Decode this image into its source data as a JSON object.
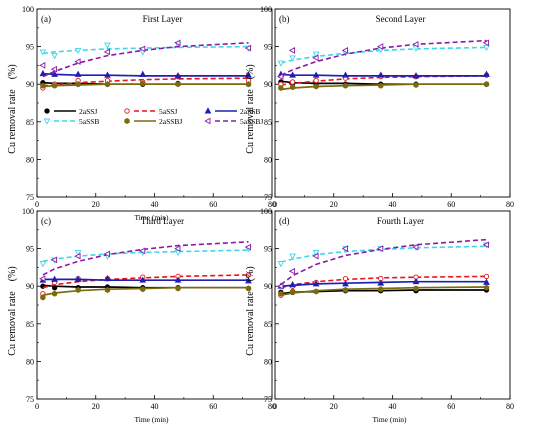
{
  "legend": [
    {
      "name": "2aSSJ",
      "color": "#000000",
      "dash": "solid",
      "marker": "filled-circle"
    },
    {
      "name": "5aSSJ",
      "color": "#e8141b",
      "dash": "dashed",
      "marker": "open-circle"
    },
    {
      "name": "2aSSB",
      "color": "#1f1fb4",
      "dash": "solid",
      "marker": "filled-triangle-up"
    },
    {
      "name": "5aSSB",
      "color": "#3fd6ea",
      "dash": "dashed",
      "marker": "open-triangle-down"
    },
    {
      "name": "2aSSBJ",
      "color": "#7a6a10",
      "dash": "solid",
      "marker": "filled-hexagon"
    },
    {
      "name": "5aSSBJ",
      "color": "#8b1aa8",
      "dash": "dashed",
      "marker": "open-triangle-left"
    }
  ],
  "chart_data": [
    {
      "type": "line",
      "panel": "(a)",
      "title": "First Layer",
      "xlabel": "Time (min)",
      "ylabel": "Cu removal rate　(%)",
      "xlim": [
        0,
        80
      ],
      "ylim": [
        75,
        100
      ],
      "xticks": [
        0,
        20,
        40,
        60,
        80
      ],
      "yticks": [
        75,
        80,
        85,
        90,
        95,
        100
      ],
      "x": [
        2,
        6,
        14,
        24,
        36,
        48,
        72
      ],
      "series": [
        {
          "name": "2aSSJ",
          "points": [
            90.2,
            90.0,
            90.0,
            90.0,
            90.0,
            90.1,
            90.0
          ],
          "fit": [
            90.2,
            90.1,
            90.1,
            90.0,
            90.0,
            90.0,
            90.0
          ]
        },
        {
          "name": "5aSSJ",
          "points": [
            89.5,
            90.0,
            90.5,
            90.5,
            90.3,
            91.0,
            90.5
          ],
          "fit": [
            89.8,
            89.9,
            90.2,
            90.4,
            90.6,
            90.7,
            90.8
          ]
        },
        {
          "name": "2aSSB",
          "points": [
            91.4,
            91.3,
            91.3,
            91.2,
            91.3,
            91.1,
            91.2
          ],
          "fit": [
            91.4,
            91.3,
            91.2,
            91.2,
            91.1,
            91.1,
            91.1
          ]
        },
        {
          "name": "5aSSB",
          "points": [
            94.3,
            93.8,
            94.5,
            95.2,
            94.3,
            95.3,
            94.8
          ],
          "fit": [
            94.1,
            94.3,
            94.5,
            94.7,
            94.8,
            94.9,
            95.0
          ]
        },
        {
          "name": "2aSSBJ",
          "points": [
            89.8,
            89.8,
            90.0,
            90.0,
            90.1,
            90.0,
            90.0
          ],
          "fit": [
            89.7,
            89.8,
            89.9,
            90.0,
            90.0,
            90.0,
            90.0
          ]
        },
        {
          "name": "5aSSBJ",
          "points": [
            92.5,
            92.0,
            93.0,
            94.3,
            94.7,
            95.5,
            94.8
          ],
          "fit": [
            91.0,
            91.7,
            92.8,
            93.8,
            94.5,
            95.0,
            95.5
          ]
        }
      ]
    },
    {
      "type": "line",
      "panel": "(b)",
      "title": "Second Layer",
      "xlabel": "",
      "ylabel": "Cu removal rate　(%)",
      "xlim": [
        0,
        80
      ],
      "ylim": [
        75,
        100
      ],
      "xticks": [
        0,
        20,
        40,
        60,
        80
      ],
      "yticks": [
        75,
        80,
        85,
        90,
        95,
        100
      ],
      "x": [
        2,
        6,
        14,
        24,
        36,
        48,
        72
      ],
      "series": [
        {
          "name": "2aSSJ",
          "points": [
            90.3,
            90.1,
            90.0,
            90.0,
            90.0,
            90.0,
            90.0
          ],
          "fit": [
            90.4,
            90.2,
            90.1,
            90.1,
            90.0,
            90.0,
            90.0
          ]
        },
        {
          "name": "5aSSJ",
          "points": [
            90.0,
            90.3,
            90.5,
            90.8,
            91.0,
            91.0,
            91.2
          ],
          "fit": [
            89.9,
            90.1,
            90.4,
            90.7,
            90.9,
            91.0,
            91.1
          ]
        },
        {
          "name": "2aSSB",
          "points": [
            91.3,
            91.2,
            91.2,
            91.2,
            91.2,
            91.1,
            91.3
          ],
          "fit": [
            91.3,
            91.2,
            91.2,
            91.1,
            91.1,
            91.1,
            91.1
          ]
        },
        {
          "name": "5aSSB",
          "points": [
            92.8,
            93.5,
            94.0,
            94.2,
            94.6,
            94.8,
            94.9
          ],
          "fit": [
            92.8,
            93.2,
            93.7,
            94.1,
            94.5,
            94.7,
            94.9
          ]
        },
        {
          "name": "2aSSBJ",
          "points": [
            89.5,
            89.6,
            89.7,
            89.8,
            89.8,
            89.9,
            90.0
          ],
          "fit": [
            89.3,
            89.5,
            89.7,
            89.8,
            89.9,
            90.0,
            90.0
          ]
        },
        {
          "name": "5aSSBJ",
          "points": [
            91.0,
            94.5,
            93.5,
            94.5,
            95.0,
            95.3,
            95.5
          ],
          "fit": [
            91.2,
            91.9,
            93.0,
            94.0,
            94.8,
            95.3,
            95.8
          ]
        }
      ]
    },
    {
      "type": "line",
      "panel": "(c)",
      "title": "Third Layer",
      "xlabel": "Time (min)",
      "ylabel": "Cu removal rate　(%)",
      "xlim": [
        0,
        80
      ],
      "ylim": [
        75,
        100
      ],
      "xticks": [
        0,
        20,
        40,
        60,
        80
      ],
      "yticks": [
        75,
        80,
        85,
        90,
        95,
        100
      ],
      "x": [
        2,
        6,
        14,
        24,
        36,
        48,
        72
      ],
      "series": [
        {
          "name": "2aSSJ",
          "points": [
            90.0,
            89.8,
            89.8,
            89.9,
            89.8,
            89.8,
            89.7
          ],
          "fit": [
            90.1,
            90.0,
            89.9,
            89.9,
            89.8,
            89.8,
            89.8
          ]
        },
        {
          "name": "5aSSJ",
          "points": [
            89.0,
            90.5,
            91.0,
            91.0,
            91.2,
            91.3,
            91.5
          ],
          "fit": [
            89.8,
            90.2,
            90.6,
            90.9,
            91.1,
            91.3,
            91.5
          ]
        },
        {
          "name": "2aSSB",
          "points": [
            90.8,
            90.9,
            90.9,
            91.0,
            90.8,
            90.8,
            90.7
          ],
          "fit": [
            90.9,
            90.9,
            90.9,
            90.8,
            90.8,
            90.8,
            90.8
          ]
        },
        {
          "name": "5aSSB",
          "points": [
            93.0,
            93.5,
            94.5,
            94.0,
            94.5,
            94.5,
            95.0
          ],
          "fit": [
            93.3,
            93.6,
            94.0,
            94.3,
            94.5,
            94.6,
            94.8
          ]
        },
        {
          "name": "2aSSBJ",
          "points": [
            88.5,
            89.0,
            89.5,
            89.5,
            89.6,
            89.7,
            89.7
          ],
          "fit": [
            88.8,
            89.1,
            89.4,
            89.6,
            89.7,
            89.8,
            89.8
          ]
        },
        {
          "name": "5aSSBJ",
          "points": [
            91.0,
            93.5,
            94.0,
            94.3,
            94.7,
            95.0,
            95.2
          ],
          "fit": [
            91.5,
            92.3,
            93.3,
            94.2,
            94.9,
            95.4,
            95.9
          ]
        }
      ]
    },
    {
      "type": "line",
      "panel": "(d)",
      "title": "Fourth Layer",
      "xlabel": "Time (min)",
      "ylabel": "Cu removal rate　(%)",
      "xlim": [
        0,
        80
      ],
      "ylim": [
        75,
        100
      ],
      "xticks": [
        0,
        20,
        40,
        60,
        80
      ],
      "yticks": [
        75,
        80,
        85,
        90,
        95,
        100
      ],
      "x": [
        2,
        6,
        14,
        24,
        36,
        48,
        72
      ],
      "series": [
        {
          "name": "2aSSJ",
          "points": [
            89.2,
            89.2,
            89.3,
            89.4,
            89.4,
            89.4,
            89.5
          ],
          "fit": [
            89.0,
            89.2,
            89.3,
            89.4,
            89.4,
            89.5,
            89.5
          ]
        },
        {
          "name": "5aSSJ",
          "points": [
            88.8,
            90.0,
            90.5,
            91.0,
            91.0,
            91.2,
            91.3
          ],
          "fit": [
            89.8,
            90.2,
            90.6,
            90.9,
            91.1,
            91.2,
            91.3
          ]
        },
        {
          "name": "2aSSB",
          "points": [
            90.0,
            90.2,
            90.3,
            90.3,
            90.4,
            90.6,
            90.5
          ],
          "fit": [
            90.0,
            90.1,
            90.3,
            90.4,
            90.5,
            90.6,
            90.6
          ]
        },
        {
          "name": "5aSSB",
          "points": [
            93.0,
            94.0,
            94.5,
            95.0,
            95.0,
            95.2,
            95.5
          ],
          "fit": [
            93.2,
            93.6,
            94.2,
            94.6,
            94.9,
            95.1,
            95.3
          ]
        },
        {
          "name": "2aSSBJ",
          "points": [
            89.0,
            89.3,
            89.3,
            89.5,
            89.6,
            89.7,
            89.8
          ],
          "fit": [
            88.8,
            89.1,
            89.4,
            89.6,
            89.7,
            89.8,
            89.9
          ]
        },
        {
          "name": "5aSSBJ",
          "points": [
            90.0,
            92.0,
            94.0,
            95.0,
            95.0,
            95.2,
            95.5
          ],
          "fit": [
            90.2,
            91.4,
            92.9,
            94.1,
            94.9,
            95.5,
            96.2
          ]
        }
      ]
    }
  ]
}
